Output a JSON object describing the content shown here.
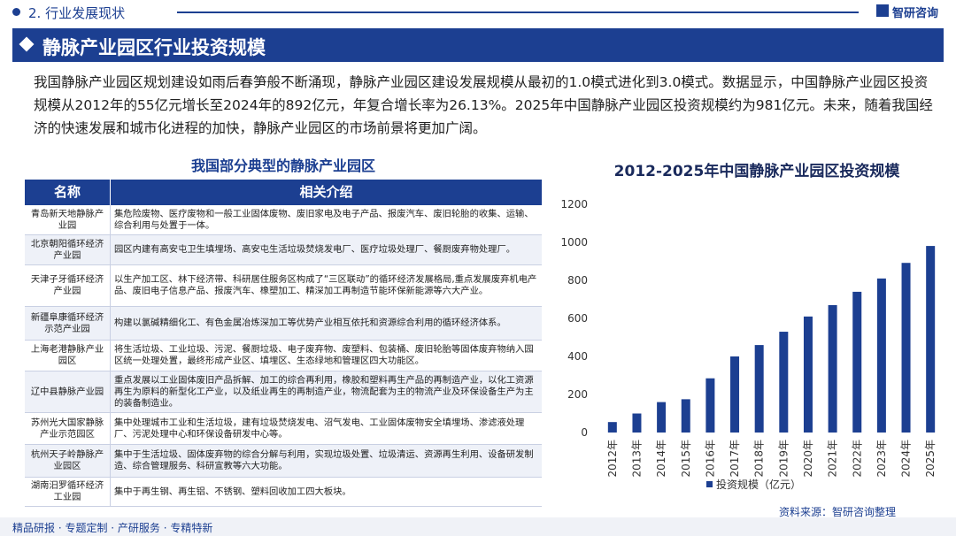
{
  "header": {
    "section": "2. 行业发展现状",
    "logo": "智研咨询",
    "title": "静脉产业园区行业投资规模"
  },
  "intro": "我国静脉产业园区规划建设如雨后春笋般不断涌现，静脉产业园区建设发展规模从最初的1.0模式进化到3.0模式。数据显示，中国静脉产业园区投资规模从2012年的55亿元增长至2024年的892亿元，年复合增长率为26.13%。2025年中国静脉产业园区投资规模约为981亿元。未来，随着我国经济的快速发展和城市化进程的加快，静脉产业园区的市场前景将更加广阔。",
  "table": {
    "title": "我国部分典型的静脉产业园区",
    "columns": [
      "名称",
      "相关介绍"
    ],
    "rows": [
      [
        "青岛新天地静脉产业园",
        "集危险废物、医疗废物和一般工业固体废物、废旧家电及电子产品、报废汽车、废旧轮胎的收集、运输、综合利用与处置于一体。"
      ],
      [
        "北京朝阳循环经济产业园",
        "园区内建有高安屯卫生填埋场、高安屯生活垃圾焚烧发电厂、医疗垃圾处理厂、餐厨废弃物处理厂。"
      ],
      [
        "天津子牙循环经济产业园",
        "以生产加工区、林下经济带、科研居住服务区构成了“三区联动”的循环经济发展格局,重点发展废弃机电产品、废旧电子信息产品、报废汽车、橡塑加工、精深加工再制造节能环保新能源等六大产业。"
      ],
      [
        "新疆阜康循环经济示范产业园",
        "构建以氯碱精细化工、有色金属冶炼深加工等优势产业相互依托和资源综合利用的循环经济体系。"
      ],
      [
        "上海老港静脉产业园区",
        "将生活垃圾、工业垃圾、污泥、餐厨垃圾、电子废弃物、废塑料、包装桶、废旧轮胎等固体废弃物纳入园区统一处理处置，最终形成产业区、填埋区、生态绿地和管理区四大功能区。"
      ],
      [
        "辽中县静脉产业园",
        "重点发展以工业固体废旧产品拆解、加工的综合再利用，橡胶和塑料再生产品的再制造产业，以化工资源再生为原料的新型化工产业，以及纸业再生的再制造产业，物流配套为主的物流产业及环保设备生产为主的装备制造业。"
      ],
      [
        "苏州光大国家静脉产业示范园区",
        "集中处理城市工业和生活垃圾，建有垃圾焚烧发电、沼气发电、工业固体废物安全填埋场、渗滤液处理厂、污泥处理中心和环保设备研发中心等。"
      ],
      [
        "杭州天子岭静脉产业园区",
        "集中于生活垃圾、固体废弃物的综合分解与利用，实现垃圾处置、垃圾清运、资源再生利用、设备研发制造、综合管理服务、科研宣教等六大功能。"
      ],
      [
        "湖南汨罗循环经济工业园",
        "集中于再生钢、再生铝、不锈钢、塑料回收加工四大板块。"
      ]
    ]
  },
  "chart_data": {
    "type": "bar",
    "title": "2012-2025年中国静脉产业园区投资规模",
    "categories": [
      "2012年",
      "2013年",
      "2014年",
      "2015年",
      "2016年",
      "2017年",
      "2018年",
      "2019年",
      "2020年",
      "2021年",
      "2022年",
      "2023年",
      "2024年",
      "2025年"
    ],
    "series": [
      {
        "name": "投资规模（亿元）",
        "color": "#1c3f91",
        "values": [
          55,
          100,
          160,
          175,
          285,
          400,
          460,
          530,
          610,
          670,
          740,
          810,
          892,
          981
        ]
      }
    ],
    "ylim": [
      0,
      1200
    ],
    "yticks": [
      0,
      200,
      400,
      600,
      800,
      1000,
      1200
    ],
    "grid": false,
    "legend": "bottom"
  },
  "source": "资料来源：智研咨询整理",
  "footer": "精品研报 · 专题定制 · 产研服务 · 专精特新"
}
